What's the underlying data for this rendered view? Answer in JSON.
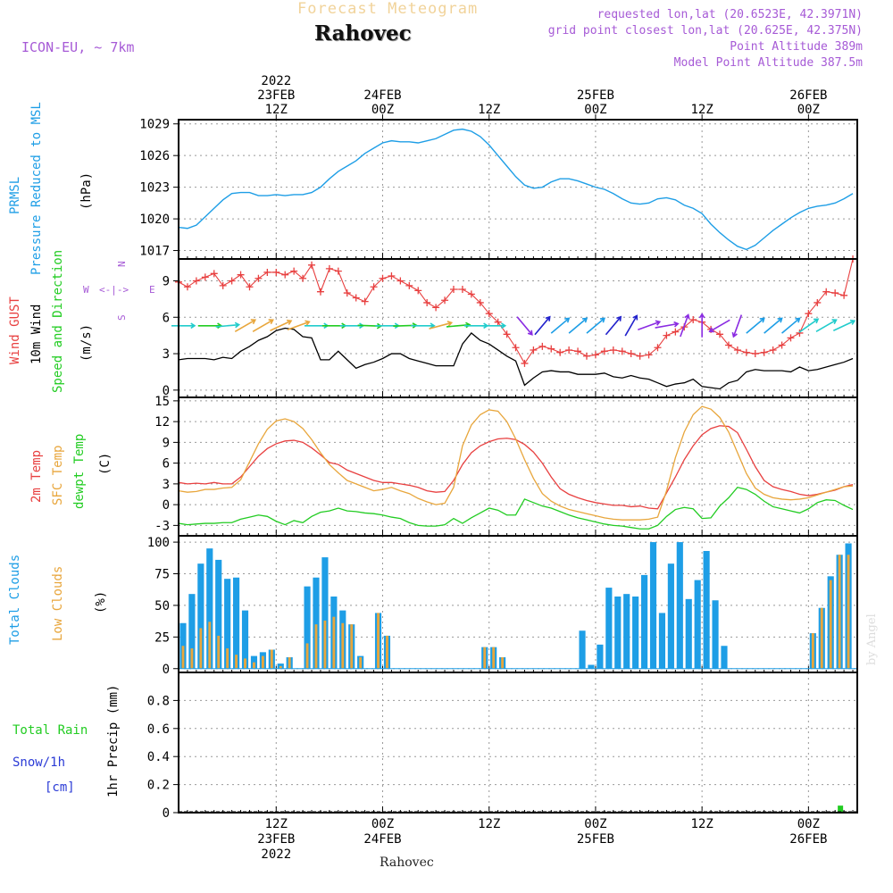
{
  "header": {
    "title": "Forecast Meteogram",
    "location": "Rahovec",
    "model": "ICON-EU, ~ 7km",
    "requested": "requested lon,lat (20.6523E, 42.3971N)",
    "gridpoint": "grid point closest lon,lat (20.625E, 42.375N)",
    "altitude": "Point Altitude 389m",
    "model_altitude": "Model Point Altitude 387.5m",
    "footer": "Rahovec",
    "credit": "by Angel"
  },
  "time_axis": {
    "top": [
      {
        "t": 18,
        "lines": [
          "2022",
          "23FEB",
          "12Z"
        ]
      },
      {
        "t": 30,
        "lines": [
          "24FEB",
          "00Z"
        ]
      },
      {
        "t": 42,
        "lines": [
          "12Z"
        ]
      },
      {
        "t": 54,
        "lines": [
          "25FEB",
          "00Z"
        ]
      },
      {
        "t": 66,
        "lines": [
          "12Z"
        ]
      },
      {
        "t": 78,
        "lines": [
          "26FEB",
          "00Z"
        ]
      }
    ],
    "bottom": [
      {
        "t": 18,
        "lines": [
          "12Z",
          "23FEB",
          "2022"
        ]
      },
      {
        "t": 30,
        "lines": [
          "00Z",
          "24FEB"
        ]
      },
      {
        "t": 42,
        "lines": [
          "12Z"
        ]
      },
      {
        "t": 54,
        "lines": [
          "00Z",
          "25FEB"
        ]
      },
      {
        "t": 66,
        "lines": [
          "12Z"
        ]
      },
      {
        "t": 78,
        "lines": [
          "00Z",
          "26FEB"
        ]
      }
    ]
  },
  "labels": {
    "prmsl": "PRMSL",
    "pressure": "Pressure Reduced to MSL",
    "hpa": "(hPa)",
    "gust": "Wind GUST",
    "wind10": "10m Wind",
    "speed_dir": "Speed and Direction",
    "ms": "(m/s)",
    "t2m": "2m Temp",
    "sfc": "SFC Temp",
    "dewpt": "dewpt Temp",
    "degc": "(C)",
    "total_clouds": "Total Clouds",
    "low_clouds": "Low Clouds",
    "pct": "(%)",
    "precip": "1hr Precip (mm)",
    "total_rain": "Total  Rain",
    "snow": "Snow/1h",
    "cm": "[cm]",
    "compass_n": "N",
    "compass_s": "S",
    "compass_w": "W",
    "compass_e": "E"
  },
  "chart_data": [
    {
      "type": "line",
      "name": "pressure",
      "ylabel": "(hPa)",
      "ylim": [
        1016.2,
        1029.4
      ],
      "yticks": [
        1017,
        1020,
        1023,
        1026,
        1029
      ],
      "xlim": [
        7,
        83.5
      ],
      "color": "#1e9ee6",
      "x": [
        7,
        8,
        9,
        10,
        11,
        12,
        13,
        14,
        15,
        16,
        17,
        18,
        19,
        20,
        21,
        22,
        23,
        24,
        25,
        26,
        27,
        28,
        29,
        30,
        31,
        32,
        33,
        34,
        35,
        36,
        37,
        38,
        39,
        40,
        41,
        42,
        43,
        44,
        45,
        46,
        47,
        48,
        49,
        50,
        51,
        52,
        53,
        54,
        55,
        56,
        57,
        58,
        59,
        60,
        61,
        62,
        63,
        64,
        65,
        66,
        67,
        68,
        69,
        70,
        71,
        72,
        73,
        74,
        75,
        76,
        77,
        78,
        79,
        80,
        81,
        82,
        83
      ],
      "values": [
        1019.2,
        1019.1,
        1019.4,
        1020.2,
        1021.0,
        1021.8,
        1022.4,
        1022.5,
        1022.5,
        1022.2,
        1022.2,
        1022.3,
        1022.2,
        1022.3,
        1022.3,
        1022.5,
        1023.0,
        1023.8,
        1024.5,
        1025.0,
        1025.5,
        1026.2,
        1026.7,
        1027.2,
        1027.4,
        1027.3,
        1027.3,
        1027.2,
        1027.4,
        1027.6,
        1028.0,
        1028.4,
        1028.5,
        1028.3,
        1027.8,
        1027.0,
        1026.0,
        1025.0,
        1024.0,
        1023.2,
        1022.9,
        1023.0,
        1023.5,
        1023.8,
        1023.8,
        1023.6,
        1023.3,
        1023.0,
        1022.8,
        1022.4,
        1021.9,
        1021.5,
        1021.4,
        1021.5,
        1021.9,
        1022.0,
        1021.8,
        1021.3,
        1021.0,
        1020.5,
        1019.5,
        1018.7,
        1018.0,
        1017.4,
        1017.1,
        1017.5,
        1018.2,
        1018.9,
        1019.5,
        1020.1,
        1020.6,
        1021.0,
        1021.2,
        1021.3,
        1021.5,
        1021.9,
        1022.4
      ]
    },
    {
      "type": "line",
      "name": "wind",
      "ylabel": "(m/s)",
      "ylim": [
        -0.6,
        10.8
      ],
      "yticks": [
        0,
        3,
        6,
        9
      ],
      "xlim": [
        7,
        83.5
      ],
      "series": [
        {
          "name": "Wind GUST",
          "color": "#e84040",
          "values": [
            8.9,
            8.5,
            9.0,
            9.3,
            9.6,
            8.6,
            9.0,
            9.5,
            8.5,
            9.2,
            9.7,
            9.7,
            9.5,
            9.8,
            9.2,
            10.3,
            8.1,
            10.0,
            9.8,
            8.0,
            7.6,
            7.3,
            8.5,
            9.2,
            9.4,
            9.0,
            8.6,
            8.2,
            7.2,
            6.8,
            7.4,
            8.3,
            8.3,
            7.9,
            7.2,
            6.3,
            5.6,
            4.6,
            3.5,
            2.2,
            3.3,
            3.6,
            3.4,
            3.1,
            3.3,
            3.2,
            2.8,
            2.9,
            3.2,
            3.3,
            3.2,
            3.0,
            2.8,
            2.9,
            3.5,
            4.5,
            4.8,
            5.2,
            5.8,
            5.6,
            5.0,
            4.6,
            3.7,
            3.3,
            3.1,
            3.0,
            3.1,
            3.3,
            3.7,
            4.3,
            4.7,
            6.3,
            7.2,
            8.1,
            8.0,
            7.8,
            10.8
          ]
        },
        {
          "name": "10m Wind",
          "color": "#000000",
          "values": [
            2.5,
            2.6,
            2.6,
            2.6,
            2.5,
            2.7,
            2.6,
            3.2,
            3.6,
            4.1,
            4.4,
            4.9,
            5.1,
            5.0,
            4.4,
            4.3,
            2.5,
            2.5,
            3.2,
            2.5,
            1.8,
            2.1,
            2.3,
            2.6,
            3.0,
            3.0,
            2.6,
            2.4,
            2.2,
            2.0,
            2.0,
            2.0,
            3.8,
            4.7,
            4.1,
            3.8,
            3.3,
            2.8,
            2.4,
            0.4,
            1.0,
            1.5,
            1.6,
            1.5,
            1.5,
            1.3,
            1.3,
            1.3,
            1.4,
            1.1,
            1.0,
            1.2,
            1.0,
            0.9,
            0.6,
            0.3,
            0.5,
            0.6,
            0.9,
            0.3,
            0.2,
            0.1,
            0.6,
            0.8,
            1.5,
            1.7,
            1.6,
            1.6,
            1.6,
            1.5,
            1.9,
            1.6,
            1.7,
            1.9,
            2.1,
            2.3,
            2.6
          ]
        }
      ]
    },
    {
      "type": "line",
      "name": "temperature",
      "ylabel": "(C)",
      "ylim": [
        -4.5,
        15.5
      ],
      "yticks": [
        -3,
        0,
        3,
        6,
        9,
        12,
        15
      ],
      "xlim": [
        7,
        83.5
      ],
      "series": [
        {
          "name": "2m Temp",
          "color": "#e84040",
          "values": [
            3.2,
            3.0,
            3.1,
            3.0,
            3.2,
            3.0,
            3.0,
            4.0,
            5.5,
            7.0,
            8.1,
            8.8,
            9.2,
            9.3,
            9.0,
            8.2,
            7.2,
            6.1,
            5.8,
            5.0,
            4.5,
            4.0,
            3.5,
            3.2,
            3.2,
            3.0,
            2.8,
            2.5,
            2.0,
            1.8,
            1.9,
            3.5,
            5.8,
            7.5,
            8.5,
            9.1,
            9.5,
            9.6,
            9.4,
            8.7,
            7.6,
            6.0,
            4.0,
            2.3,
            1.5,
            1.0,
            0.6,
            0.3,
            0.1,
            -0.1,
            -0.1,
            -0.3,
            -0.2,
            -0.5,
            -0.6,
            1.7,
            4.0,
            6.5,
            8.5,
            10.1,
            11.0,
            11.4,
            11.3,
            10.4,
            8.0,
            5.5,
            3.5,
            2.6,
            2.2,
            1.9,
            1.5,
            1.3,
            1.5,
            1.8,
            2.1,
            2.6,
            2.9
          ]
        },
        {
          "name": "SFC Temp",
          "color": "#e8a63c",
          "values": [
            2.0,
            1.8,
            1.9,
            2.2,
            2.2,
            2.4,
            2.5,
            3.6,
            6.2,
            8.8,
            10.9,
            12.1,
            12.4,
            12.0,
            11.0,
            9.4,
            7.5,
            5.8,
            4.6,
            3.5,
            3.0,
            2.5,
            2.0,
            2.2,
            2.5,
            2.0,
            1.6,
            0.9,
            0.4,
            0.0,
            0.2,
            2.5,
            8.5,
            11.5,
            13.0,
            13.7,
            13.5,
            12.0,
            9.5,
            6.5,
            3.8,
            1.6,
            0.5,
            -0.2,
            -0.7,
            -1.0,
            -1.3,
            -1.6,
            -1.9,
            -2.1,
            -2.2,
            -2.2,
            -2.2,
            -2.1,
            -1.8,
            2.0,
            6.8,
            10.5,
            13.0,
            14.2,
            13.8,
            12.6,
            10.5,
            7.5,
            4.5,
            2.4,
            1.5,
            1.0,
            0.8,
            0.7,
            0.8,
            1.0,
            1.4,
            1.8,
            2.2,
            2.6,
            2.7
          ]
        },
        {
          "name": "dewpt Temp",
          "color": "#22cc22",
          "values": [
            -2.7,
            -2.9,
            -2.8,
            -2.7,
            -2.7,
            -2.6,
            -2.6,
            -2.1,
            -1.8,
            -1.5,
            -1.7,
            -2.4,
            -2.9,
            -2.3,
            -2.6,
            -1.7,
            -1.1,
            -0.9,
            -0.5,
            -0.9,
            -1.0,
            -1.2,
            -1.3,
            -1.5,
            -1.8,
            -2.0,
            -2.6,
            -3.0,
            -3.1,
            -3.1,
            -2.9,
            -2.0,
            -2.7,
            -1.9,
            -1.2,
            -0.5,
            -0.8,
            -1.5,
            -1.5,
            0.8,
            0.3,
            -0.2,
            -0.5,
            -1.0,
            -1.5,
            -1.9,
            -2.2,
            -2.5,
            -2.8,
            -3.0,
            -3.1,
            -3.3,
            -3.5,
            -3.5,
            -3.0,
            -1.7,
            -0.7,
            -0.4,
            -0.6,
            -2.0,
            -1.9,
            -0.2,
            1.0,
            2.5,
            2.2,
            1.5,
            0.5,
            -0.3,
            -0.6,
            -0.9,
            -1.2,
            -0.6,
            0.3,
            0.7,
            0.6,
            -0.1,
            -0.7
          ]
        }
      ]
    },
    {
      "type": "bar",
      "name": "clouds",
      "ylabel": "(%)",
      "ylim": [
        -3,
        105
      ],
      "yticks": [
        0,
        25,
        50,
        75,
        100
      ],
      "xlim": [
        7,
        83.5
      ],
      "series": [
        {
          "name": "Total Clouds",
          "color": "#1e9ee6",
          "values": [
            36,
            59,
            83,
            95,
            86,
            71,
            72,
            46,
            10,
            13,
            15,
            4,
            9,
            0,
            65,
            72,
            88,
            57,
            46,
            35,
            10,
            0,
            44,
            26,
            0,
            0,
            0,
            0,
            0,
            0,
            0,
            0,
            0,
            0,
            17,
            17,
            9,
            0,
            0,
            0,
            0,
            0,
            0,
            0,
            0,
            30,
            3,
            19,
            64,
            57,
            59,
            57,
            74,
            100,
            44,
            83,
            100,
            55,
            70,
            93,
            54,
            18,
            0,
            0,
            0,
            0,
            0,
            0,
            0,
            0,
            0,
            28,
            48,
            73,
            90,
            99
          ]
        },
        {
          "name": "Low Clouds",
          "color": "#e8a63c",
          "values": [
            18,
            16,
            32,
            37,
            26,
            16,
            11,
            8,
            5,
            10,
            15,
            2,
            9,
            0,
            20,
            35,
            38,
            41,
            36,
            35,
            9,
            0,
            44,
            26,
            0,
            0,
            0,
            0,
            0,
            0,
            0,
            0,
            0,
            0,
            17,
            17,
            9,
            0,
            0,
            0,
            0,
            0,
            0,
            0,
            0,
            0,
            0,
            0,
            0,
            0,
            0,
            0,
            0,
            0,
            0,
            0,
            0,
            0,
            0,
            0,
            0,
            0,
            0,
            0,
            0,
            0,
            0,
            0,
            0,
            0,
            0,
            28,
            48,
            70,
            90,
            90
          ]
        }
      ]
    },
    {
      "type": "bar",
      "name": "precipitation",
      "ylabel": "1hr Precip (mm)",
      "ylim": [
        0,
        1.0
      ],
      "yticks": [
        0,
        0.2,
        0.4,
        0.6,
        0.8
      ],
      "xlim": [
        7,
        83.5
      ],
      "series": [
        {
          "name": "Total Rain",
          "color": "#22cc22",
          "x": [
            81.6
          ],
          "values": [
            0.05
          ]
        }
      ]
    }
  ],
  "wind_barbs": [
    {
      "t": 7.5,
      "color": "#22cccc",
      "dir": 270
    },
    {
      "t": 10.5,
      "color": "#22cc22",
      "dir": 270
    },
    {
      "t": 12.5,
      "color": "#22cccc",
      "dir": 265
    },
    {
      "t": 14.5,
      "color": "#e8a63c",
      "dir": 240
    },
    {
      "t": 16.5,
      "color": "#e8a63c",
      "dir": 240
    },
    {
      "t": 18.5,
      "color": "#e8a63c",
      "dir": 245
    },
    {
      "t": 20.5,
      "color": "#e8a63c",
      "dir": 250
    },
    {
      "t": 22.5,
      "color": "#22cccc",
      "dir": 270
    },
    {
      "t": 24.5,
      "color": "#22cc22",
      "dir": 270
    },
    {
      "t": 26.5,
      "color": "#22cccc",
      "dir": 270
    },
    {
      "t": 28.5,
      "color": "#22cc22",
      "dir": 272
    },
    {
      "t": 30.5,
      "color": "#22cccc",
      "dir": 270
    },
    {
      "t": 32.5,
      "color": "#22cc22",
      "dir": 268
    },
    {
      "t": 34.5,
      "color": "#22cccc",
      "dir": 270
    },
    {
      "t": 36.5,
      "color": "#e8a63c",
      "dir": 255
    },
    {
      "t": 38.5,
      "color": "#22cc22",
      "dir": 265
    },
    {
      "t": 40.5,
      "color": "#22cccc",
      "dir": 270
    },
    {
      "t": 42.5,
      "color": "#22cccc",
      "dir": 270
    },
    {
      "t": 46,
      "color": "#8a2be2",
      "dir": 320
    },
    {
      "t": 48,
      "color": "#2222cc",
      "dir": 220
    },
    {
      "t": 50,
      "color": "#1e9ee6",
      "dir": 230
    },
    {
      "t": 52,
      "color": "#1e9ee6",
      "dir": 230
    },
    {
      "t": 54,
      "color": "#1e9ee6",
      "dir": 230
    },
    {
      "t": 56,
      "color": "#2222cc",
      "dir": 220
    },
    {
      "t": 58,
      "color": "#2222cc",
      "dir": 210
    },
    {
      "t": 60,
      "color": "#8a2be2",
      "dir": 250
    },
    {
      "t": 62,
      "color": "#8a2be2",
      "dir": 260
    },
    {
      "t": 64,
      "color": "#8a2be2",
      "dir": 200
    },
    {
      "t": 66,
      "color": "#8a2be2",
      "dir": 180
    },
    {
      "t": 68,
      "color": "#8a2be2",
      "dir": 60
    },
    {
      "t": 70,
      "color": "#8a2be2",
      "dir": 20
    },
    {
      "t": 72,
      "color": "#1e9ee6",
      "dir": 230
    },
    {
      "t": 74,
      "color": "#1e9ee6",
      "dir": 230
    },
    {
      "t": 76,
      "color": "#1e9ee6",
      "dir": 230
    },
    {
      "t": 78,
      "color": "#22cccc",
      "dir": 235
    },
    {
      "t": 80,
      "color": "#22cccc",
      "dir": 240
    },
    {
      "t": 82,
      "color": "#22cccc",
      "dir": 245
    }
  ]
}
